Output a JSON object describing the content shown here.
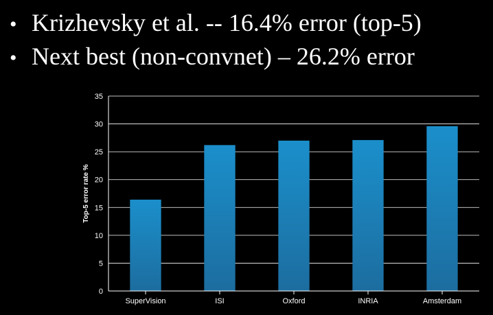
{
  "slide": {
    "bullets": [
      "Krizhevsky et al. -- 16.4% error (top-5)",
      "Next best (non-convnet) – 26.2% error"
    ]
  },
  "chart_data": {
    "type": "bar",
    "title": "",
    "xlabel": "",
    "ylabel": "Top-5 error rate %",
    "categories": [
      "SuperVision",
      "ISI",
      "Oxford",
      "INRIA",
      "Amsterdam"
    ],
    "values": [
      16.4,
      26.2,
      27.0,
      27.1,
      29.6
    ],
    "ylim": [
      0,
      35
    ],
    "yticks": [
      0,
      5,
      10,
      15,
      20,
      25,
      30,
      35
    ],
    "grid": true,
    "legend": "none",
    "colors": {
      "bar_top": "#1b8fcb",
      "bar_bottom": "#1c6d9f",
      "gridline": "#ffffff",
      "text": "#ffffff"
    }
  }
}
